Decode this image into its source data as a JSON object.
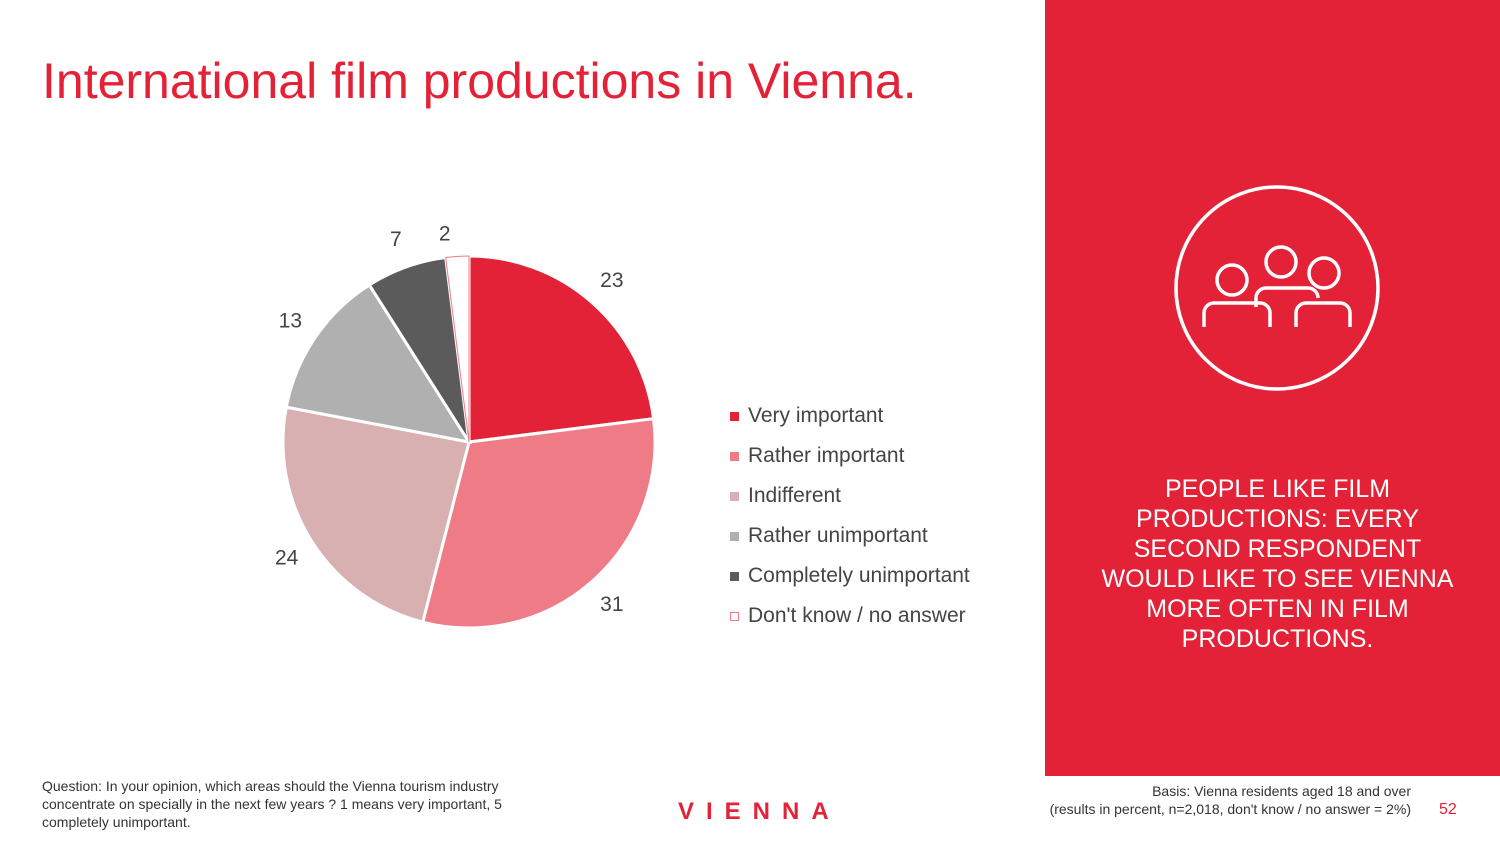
{
  "title": "International film productions in Vienna.",
  "callout": "PEOPLE LIKE FILM PRODUCTIONS: EVERY SECOND RESPONDENT WOULD LIKE TO SEE VIENNA MORE OFTEN IN FILM PRODUCTIONS.",
  "icon": "people-group-icon",
  "footer": {
    "question": "Question: In your opinion, which areas should the Vienna tourism industry concentrate on specially in the next few years ? 1 means very important, 5 completely unimportant.",
    "basis_line1": "Basis: Vienna residents aged 18 and over",
    "basis_line2": "(results in percent, n=2,018, don't know / no answer = 2%)",
    "logo": "VIENNA",
    "page": "52"
  },
  "chart_data": {
    "type": "pie",
    "unit": "percent",
    "legend_placement": "right",
    "categories": [
      "Very important",
      "Rather important",
      "Indifferent",
      "Rather unimportant",
      "Completely unimportant",
      "Don't know / no answer"
    ],
    "values": [
      23,
      31,
      24,
      13,
      7,
      2
    ],
    "colors": [
      "#e42237",
      "#ef7b87",
      "#d8b0b2",
      "#b0b0b0",
      "#5b5b5b",
      "#ffffff"
    ]
  }
}
